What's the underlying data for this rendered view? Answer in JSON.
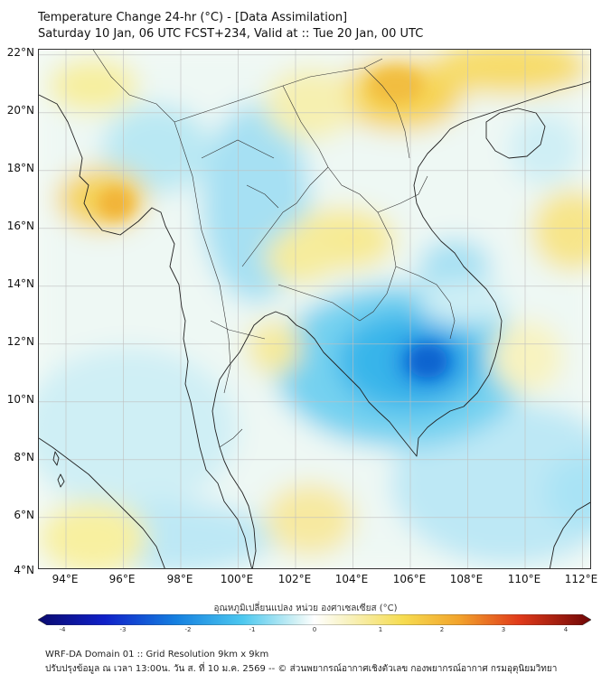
{
  "title_line1": "Temperature Change 24-hr (°C) - [Data Assimilation]",
  "title_line2": "Saturday 10 Jan, 06 UTC FCST+234, Valid at :: Tue 20 Jan, 00 UTC",
  "lat_labels": [
    "22°N",
    "20°N",
    "18°N",
    "16°N",
    "14°N",
    "12°N",
    "10°N",
    "8°N",
    "6°N",
    "4°N"
  ],
  "lon_labels": [
    "94°E",
    "96°E",
    "98°E",
    "100°E",
    "102°E",
    "104°E",
    "106°E",
    "108°E",
    "110°E",
    "112°E"
  ],
  "colorbar": {
    "title": "อุณหภูมิเปลี่ยนแปลง หน่วย องศาเซลเซียส (°C)",
    "ticks": [
      "-4",
      "-3",
      "-2",
      "-1",
      "0",
      "1",
      "2",
      "3",
      "4"
    ],
    "min": -4,
    "max": 4
  },
  "footer_line1": "WRF-DA Domain 01 :: Grid Resolution 9km x 9km",
  "footer_line2": "ปรับปรุงข้อมูล ณ เวลา 13:00น. วัน ส. ที่ 10 ม.ค. 2569 -- © ส่วนพยากรณ์อากาศเชิงตัวเลข กองพยากรณ์อากาศ กรมอุตุนิยมวิทยา"
}
